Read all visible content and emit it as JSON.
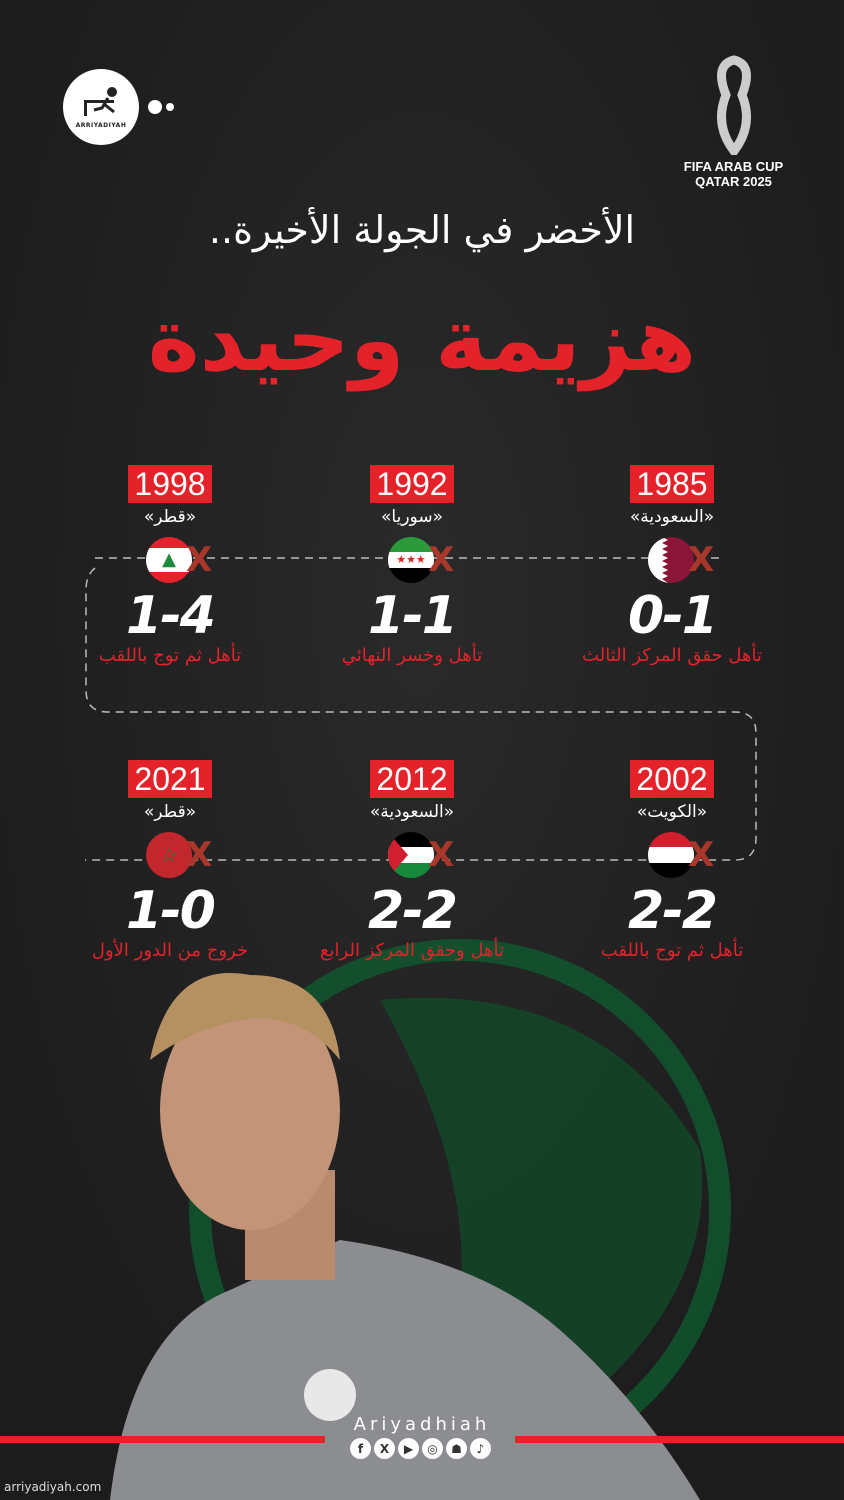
{
  "brand": {
    "logo_text": "ARRIYADIYAH",
    "event_line1": "FIFA ARAB CUP",
    "event_line2": "QATAR 2025"
  },
  "header": {
    "subtitle": "الأخضر في الجولة الأخيرة..",
    "headline": "هزيمة وحيدة"
  },
  "colors": {
    "accent": "#e3222a",
    "background": "#232323"
  },
  "matches": [
    {
      "year": "1985",
      "host": "«السعودية»",
      "flag": "qatar-flag",
      "score": "0-1",
      "result": "تأهل حقق المركز الثالث"
    },
    {
      "year": "1992",
      "host": "«سوريا»",
      "flag": "syria-flag",
      "score": "1-1",
      "result": "تأهل وخسر النهائي"
    },
    {
      "year": "1998",
      "host": "«قطر»",
      "flag": "lebanon-flag",
      "score": "1-4",
      "result": "تأهل ثم توج باللقب"
    },
    {
      "year": "2002",
      "host": "«الكويت»",
      "flag": "yemen-flag",
      "score": "2-2",
      "result": "تأهل ثم توج باللقب"
    },
    {
      "year": "2012",
      "host": "«السعودية»",
      "flag": "palestine-flag",
      "score": "2-2",
      "result": "تأهل وحقق المركز الرابع"
    },
    {
      "year": "2021",
      "host": "«قطر»",
      "flag": "morocco-flag",
      "score": "1-0",
      "result": "خروج من الدور الأول"
    }
  ],
  "footer": {
    "brand_name": "Ariyadhiah",
    "socials": [
      "facebook-icon",
      "x-icon",
      "youtube-icon",
      "instagram-icon",
      "snapchat-icon",
      "tiktok-icon"
    ],
    "website": "arriyadiyah.com"
  }
}
